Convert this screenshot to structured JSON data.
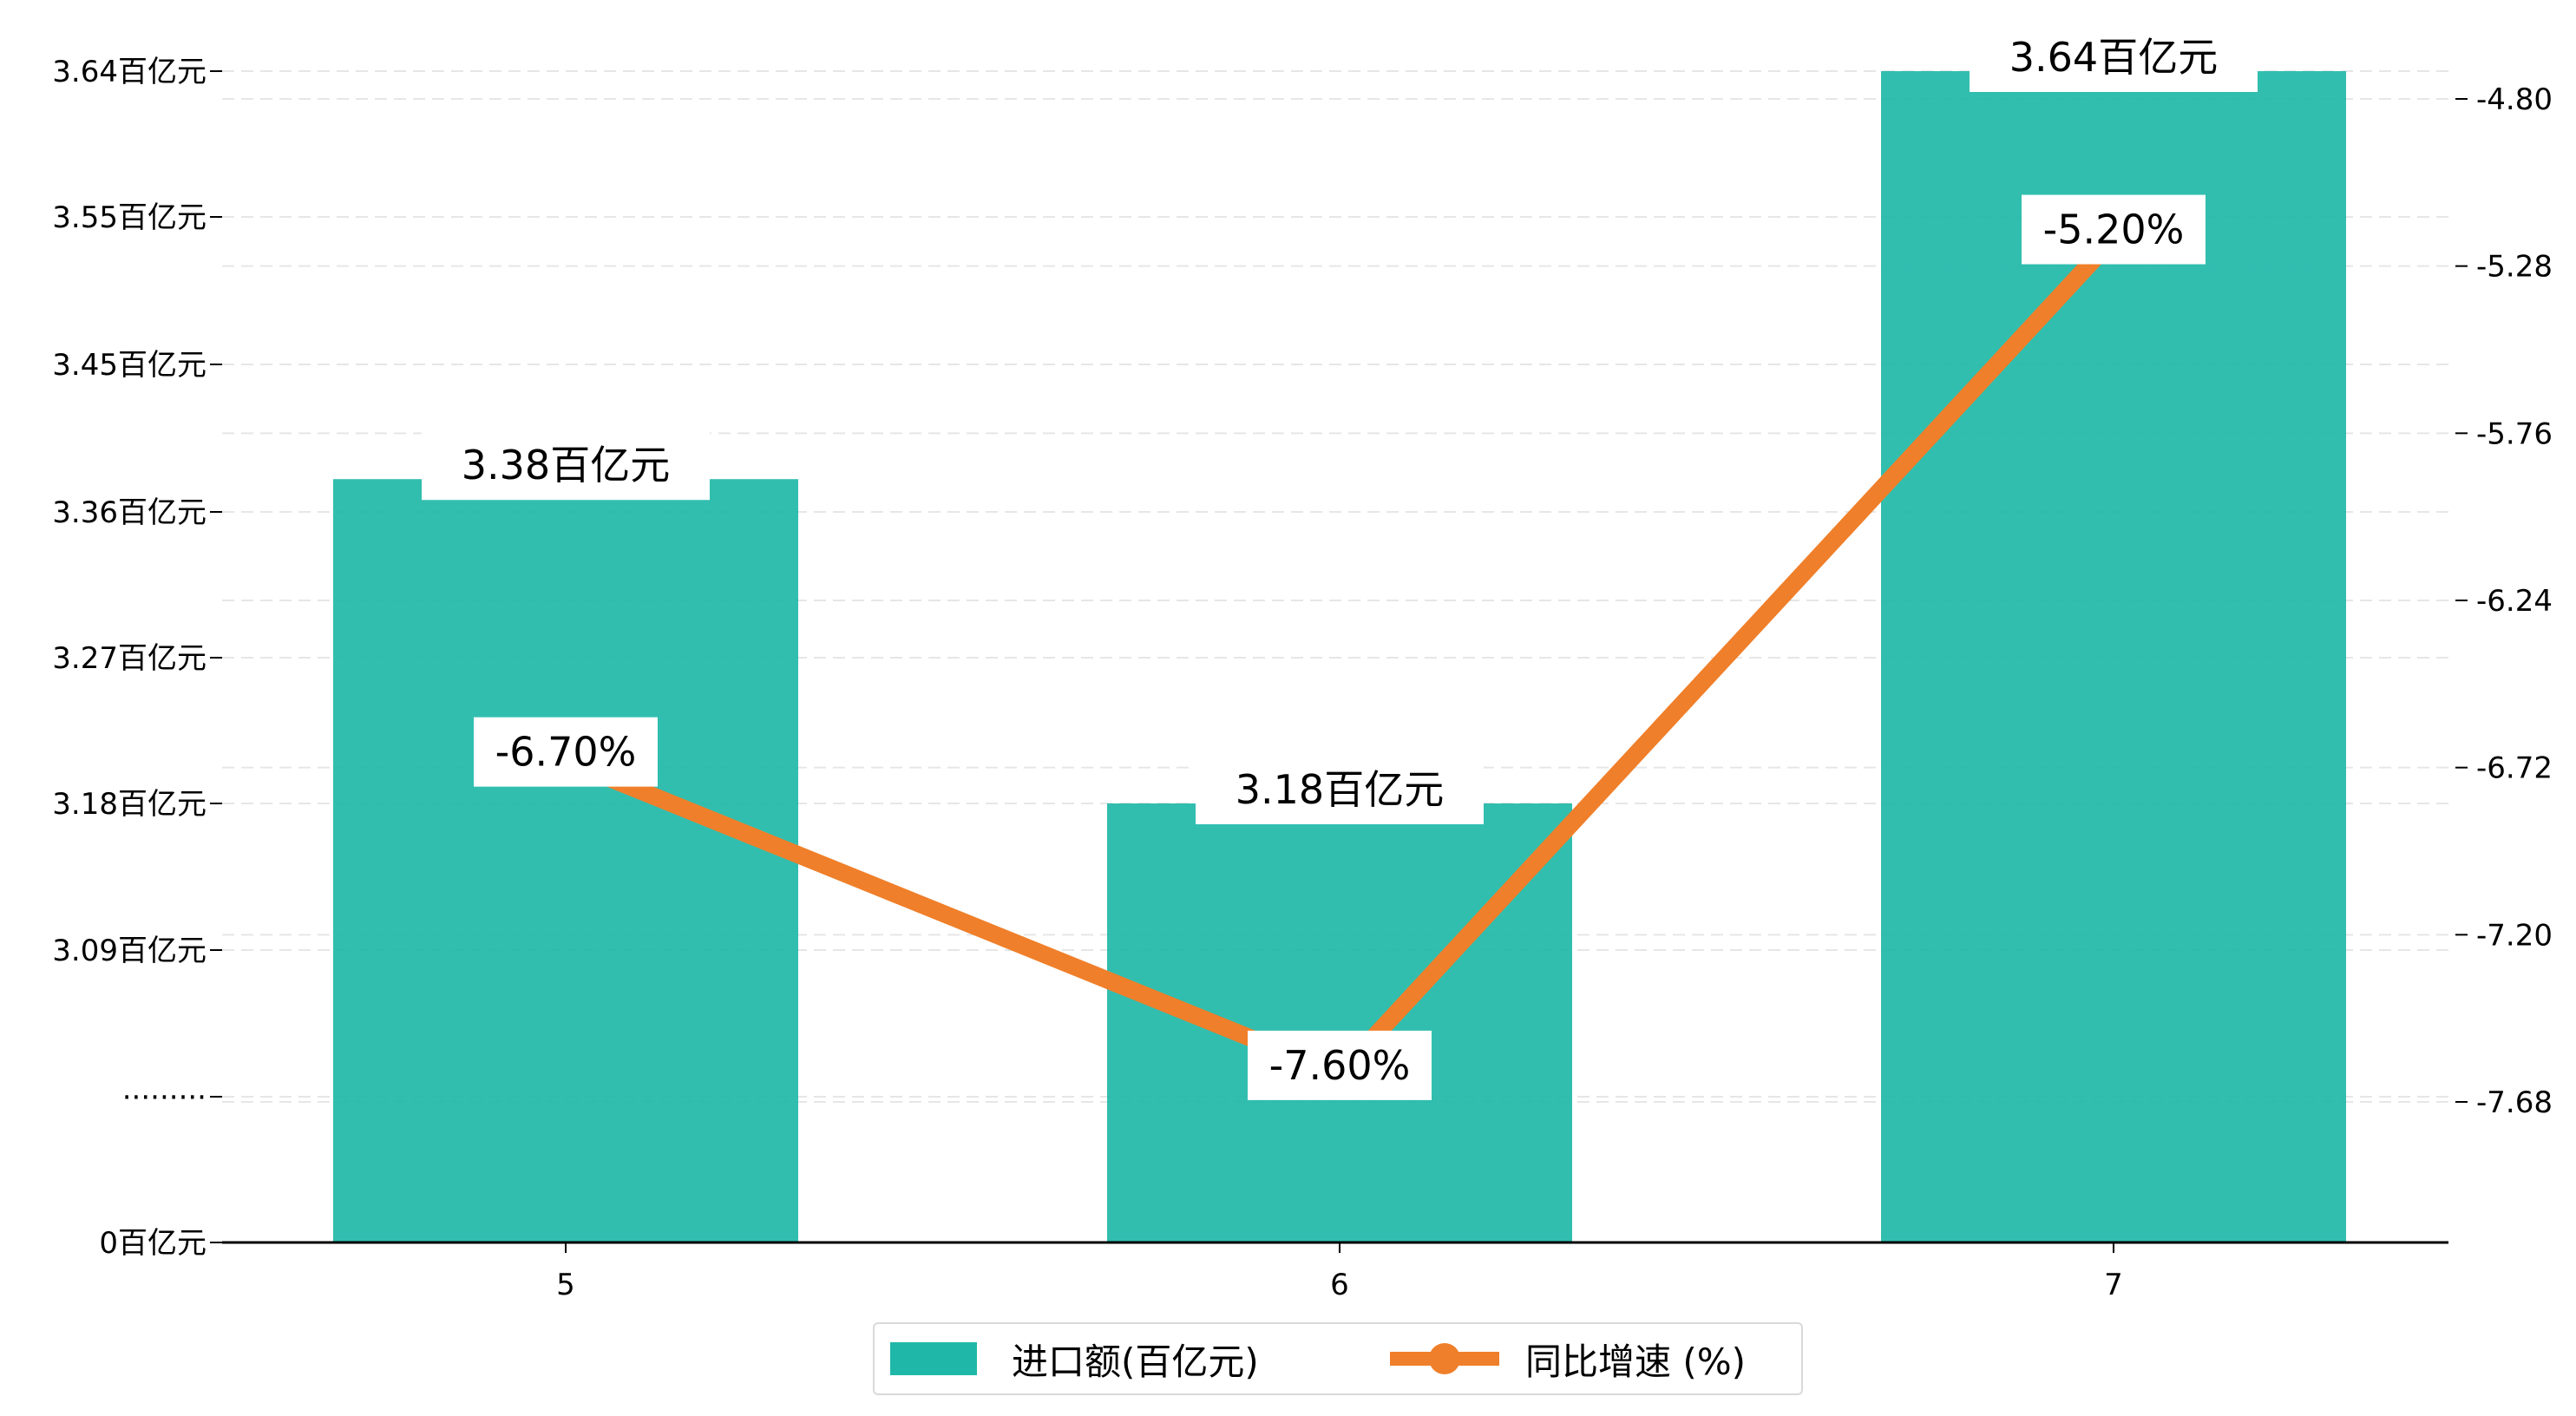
{
  "chart_data": {
    "type": "bar+line",
    "categories": [
      "5",
      "6",
      "7"
    ],
    "series": [
      {
        "name": "进口额(百亿元)",
        "kind": "bar",
        "axis": "left",
        "values": [
          3.38,
          3.18,
          3.64
        ],
        "labels": [
          "3.38百亿元",
          "3.18百亿元",
          "3.64百亿元"
        ],
        "color": "#1fb8a8"
      },
      {
        "name": "同比增速 (%)",
        "kind": "line",
        "axis": "right",
        "values": [
          -6.7,
          -7.6,
          -5.2
        ],
        "labels": [
          "-6.70%",
          "-7.60%",
          "-5.20%"
        ],
        "color": "#ef7f2a"
      }
    ],
    "left_axis": {
      "ticks": [
        0,
        2.0,
        3.09,
        3.18,
        3.27,
        3.36,
        3.45,
        3.55,
        3.64
      ],
      "tick_labels": [
        "0百亿元",
        "·········",
        "3.09百亿元",
        "3.18百亿元",
        "3.27百亿元",
        "3.36百亿元",
        "3.45百亿元",
        "3.55百亿元",
        "3.64百亿元"
      ],
      "scale": "broken"
    },
    "right_axis": {
      "ylim": [
        -8.1,
        -4.74
      ],
      "ticks": [
        -7.68,
        -7.2,
        -6.72,
        -6.24,
        -5.76,
        -5.28,
        -4.8
      ],
      "tick_labels": [
        "-7.68",
        "-7.20",
        "-6.72",
        "-6.24",
        "-5.76",
        "-5.28",
        "-4.80"
      ]
    },
    "grid": "horizontal dashed",
    "legend_position": "bottom-center"
  }
}
